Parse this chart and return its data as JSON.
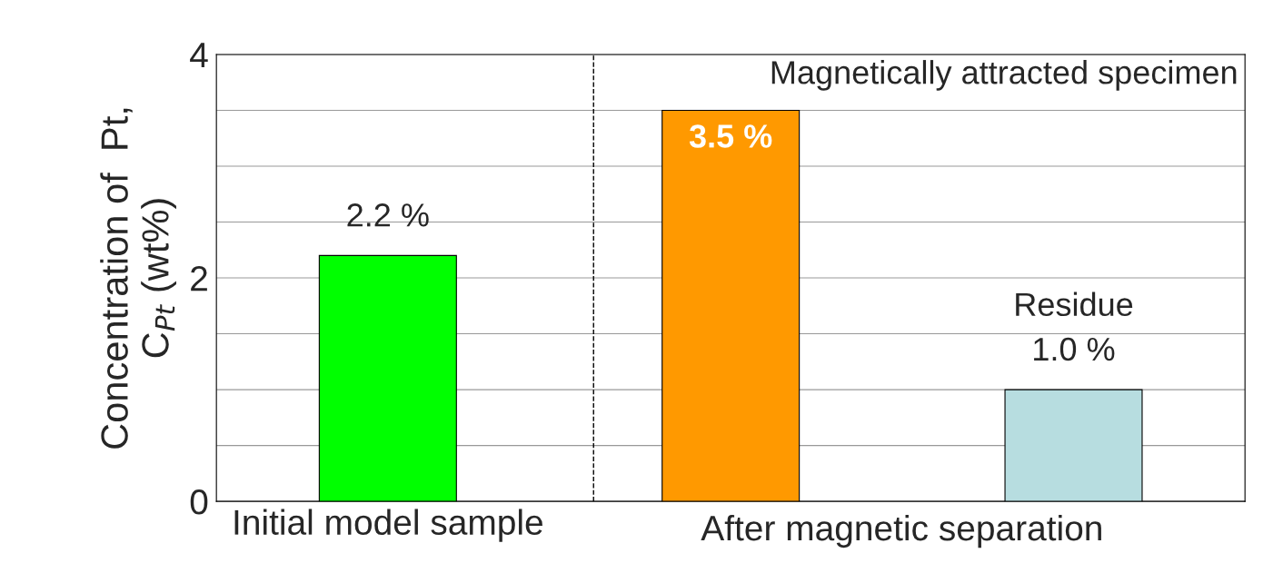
{
  "chart_data": {
    "type": "bar",
    "ylabel": "Concentration of  Pt,\nC$_{Pt}$ (wt%)",
    "categories": [
      "Initial model sample",
      null,
      null
    ],
    "values": [
      2.2,
      3.5,
      1.0
    ],
    "colors": [
      "#00ff00",
      "#ff9900",
      "#b7dde0"
    ],
    "value_labels": [
      "2.2 %",
      "3.5 %",
      "1.0 %"
    ],
    "annotations": [
      "Magnetically attracted specimen",
      "Residue",
      "After magnetic separation"
    ],
    "ylim": [
      0,
      4
    ],
    "yticks": [
      0,
      {
        "value": 0.5,
        "label": null
      },
      {
        "value": 1,
        "label": null
      },
      {
        "value": 1.5,
        "label": null
      },
      2,
      {
        "value": 2.5,
        "label": null
      },
      {
        "value": 3,
        "label": null
      },
      {
        "value": 3.5,
        "label": null
      },
      4
    ],
    "grid": "y"
  }
}
